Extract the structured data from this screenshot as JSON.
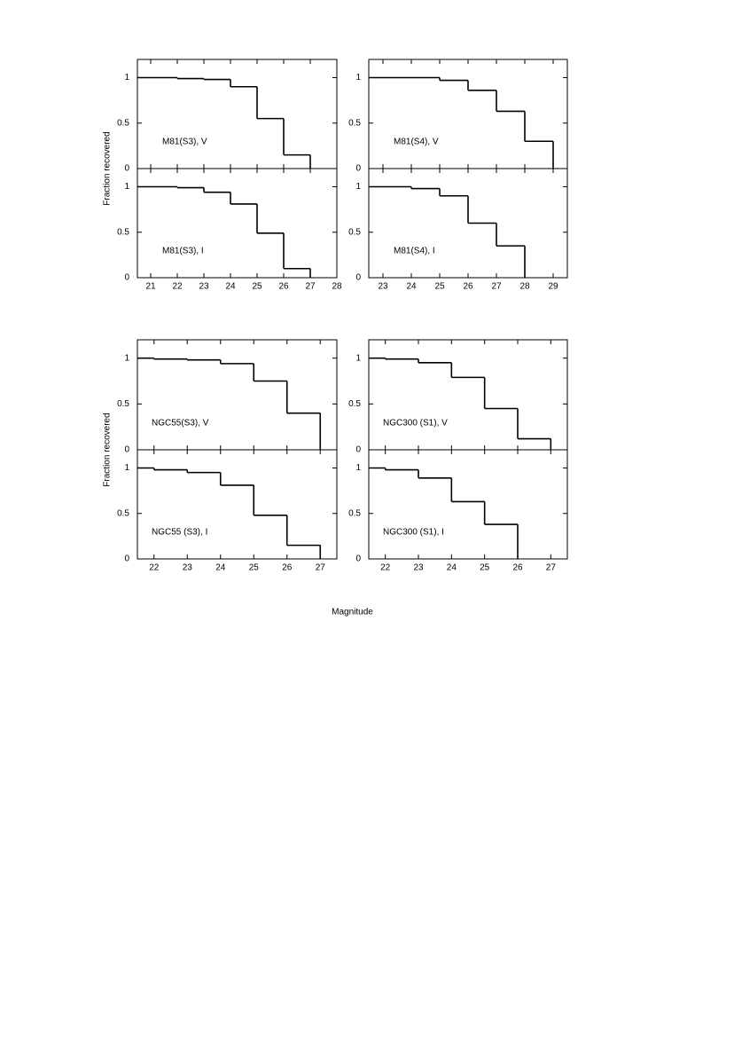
{
  "chart_data": [
    {
      "type": "histogram",
      "label": "M81(S3), V",
      "ylabel": "Fraction recovered",
      "bins": [
        20.5,
        22,
        23,
        24,
        25,
        26,
        27
      ],
      "values": [
        1.0,
        0.99,
        0.98,
        0.9,
        0.55,
        0.15
      ],
      "xlim": [
        20.5,
        28
      ],
      "ylim": [
        0,
        1.2
      ],
      "yticks": [
        0,
        0.5,
        1
      ]
    },
    {
      "type": "histogram",
      "label": "M81(S3), I",
      "bins": [
        20.5,
        22,
        23,
        24,
        25,
        26,
        27
      ],
      "values": [
        1.0,
        0.99,
        0.94,
        0.81,
        0.49,
        0.1
      ],
      "xlim": [
        20.5,
        28
      ],
      "ylim": [
        0,
        1.2
      ],
      "yticks": [
        0,
        0.5,
        1
      ],
      "xticks": [
        21,
        22,
        23,
        24,
        25,
        26,
        27,
        28
      ]
    },
    {
      "type": "histogram",
      "label": "M81(S4), V",
      "bins": [
        22.5,
        25,
        26,
        27,
        28,
        29
      ],
      "values": [
        1.0,
        0.97,
        0.86,
        0.63,
        0.3
      ],
      "xlim": [
        22.5,
        29.5
      ],
      "ylim": [
        0,
        1.2
      ],
      "yticks": [
        0,
        0.5,
        1
      ]
    },
    {
      "type": "histogram",
      "label": "M81(S4), I",
      "bins": [
        22.5,
        24,
        25,
        26,
        27,
        28
      ],
      "values": [
        1.0,
        0.98,
        0.9,
        0.6,
        0.35
      ],
      "xlim": [
        22.5,
        29.5
      ],
      "ylim": [
        0,
        1.2
      ],
      "yticks": [
        0,
        0.5,
        1
      ],
      "xticks": [
        23,
        24,
        25,
        26,
        27,
        28,
        29
      ]
    },
    {
      "type": "histogram",
      "label": "NGC55(S3), V",
      "ylabel": "Fraction recovered",
      "bins": [
        21.5,
        22,
        23,
        24,
        25,
        26,
        27
      ],
      "values": [
        1.0,
        0.99,
        0.98,
        0.94,
        0.75,
        0.4
      ],
      "xlim": [
        21.5,
        27.5
      ],
      "ylim": [
        0,
        1.2
      ],
      "yticks": [
        0,
        0.5,
        1
      ]
    },
    {
      "type": "histogram",
      "label": "NGC55  (S3), I",
      "xlabel": "Magnitude",
      "bins": [
        21.5,
        22,
        23,
        24,
        25,
        26,
        27
      ],
      "values": [
        1.0,
        0.98,
        0.95,
        0.81,
        0.48,
        0.15
      ],
      "xlim": [
        21.5,
        27.5
      ],
      "ylim": [
        0,
        1.2
      ],
      "yticks": [
        0,
        0.5,
        1
      ],
      "xticks": [
        22,
        23,
        24,
        25,
        26,
        27
      ]
    },
    {
      "type": "histogram",
      "label": "NGC300  (S1), V",
      "bins": [
        21.5,
        22,
        23,
        24,
        25,
        26,
        27
      ],
      "values": [
        1.0,
        0.99,
        0.95,
        0.79,
        0.45,
        0.12
      ],
      "xlim": [
        21.5,
        27.5
      ],
      "ylim": [
        0,
        1.2
      ],
      "yticks": [
        0,
        0.5,
        1
      ]
    },
    {
      "type": "histogram",
      "label": "NGC300  (S1), I",
      "bins": [
        21.5,
        22,
        23,
        24,
        25,
        26
      ],
      "values": [
        1.0,
        0.98,
        0.89,
        0.63,
        0.38
      ],
      "xlim": [
        21.5,
        27.5
      ],
      "ylim": [
        0,
        1.2
      ],
      "yticks": [
        0,
        0.5,
        1
      ],
      "xticks": [
        22,
        23,
        24,
        25,
        26,
        27
      ]
    }
  ]
}
